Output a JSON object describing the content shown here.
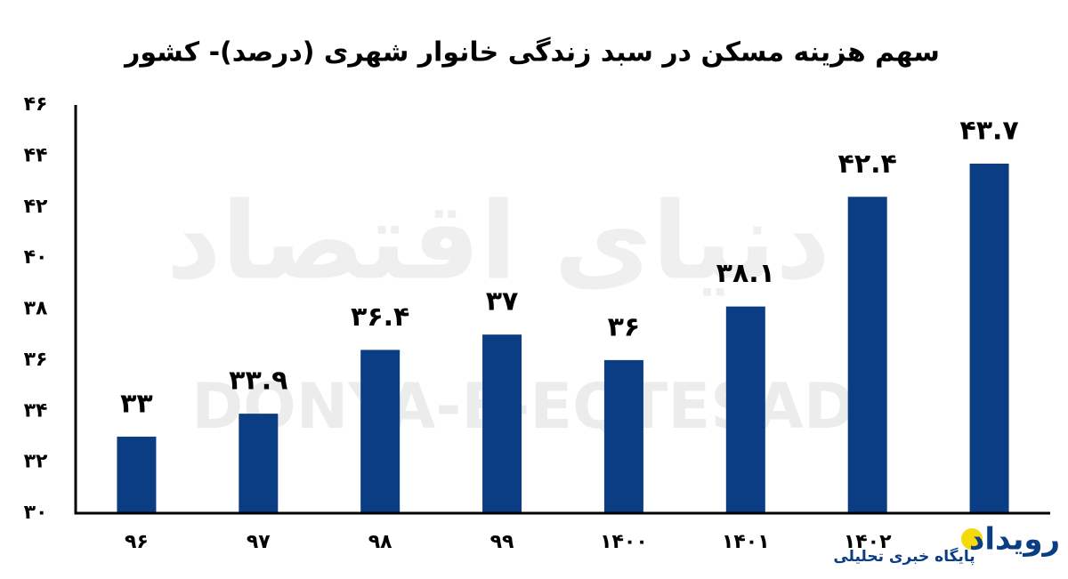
{
  "chart_data": {
    "type": "bar",
    "title": "سهم هزینه مسکن در سبد زندگی خانوار شهری (درصد)- کشور",
    "categories": [
      "۹۶",
      "۹۷",
      "۹۸",
      "۹۹",
      "۱۴۰۰",
      "۱۴۰۱",
      "۱۴۰۲",
      null
    ],
    "values": [
      33,
      33.9,
      36.4,
      37,
      36,
      38.1,
      42.4,
      43.7
    ],
    "value_labels": [
      "۳۳",
      "۳۳.۹",
      "۳۶.۴",
      "۳۷",
      "۳۶",
      "۳۸.۱",
      "۴۲.۴",
      "۴۳.۷"
    ],
    "color": "#0b3d85",
    "ylim": [
      30,
      46
    ],
    "yticks": [
      {
        "value": 30,
        "label": "۳۰"
      },
      {
        "value": 32,
        "label": "۳۲"
      },
      {
        "value": 34,
        "label": "۳۴"
      },
      {
        "value": 36,
        "label": "۳۶"
      },
      {
        "value": 38,
        "label": "۳۸"
      },
      {
        "value": 40,
        "label": "۴۰"
      },
      {
        "value": 42,
        "label": "۴۲"
      },
      {
        "value": 44,
        "label": "۴۴"
      },
      {
        "value": 46,
        "label": "۴۶"
      }
    ],
    "grid": false,
    "watermark": "DONYA-E-EQTESAD",
    "watermark_fa": "دنیای اقتصاد",
    "logo_name": "رویداد",
    "logo_tagline": "پایگاه خبری تحلیلی"
  }
}
